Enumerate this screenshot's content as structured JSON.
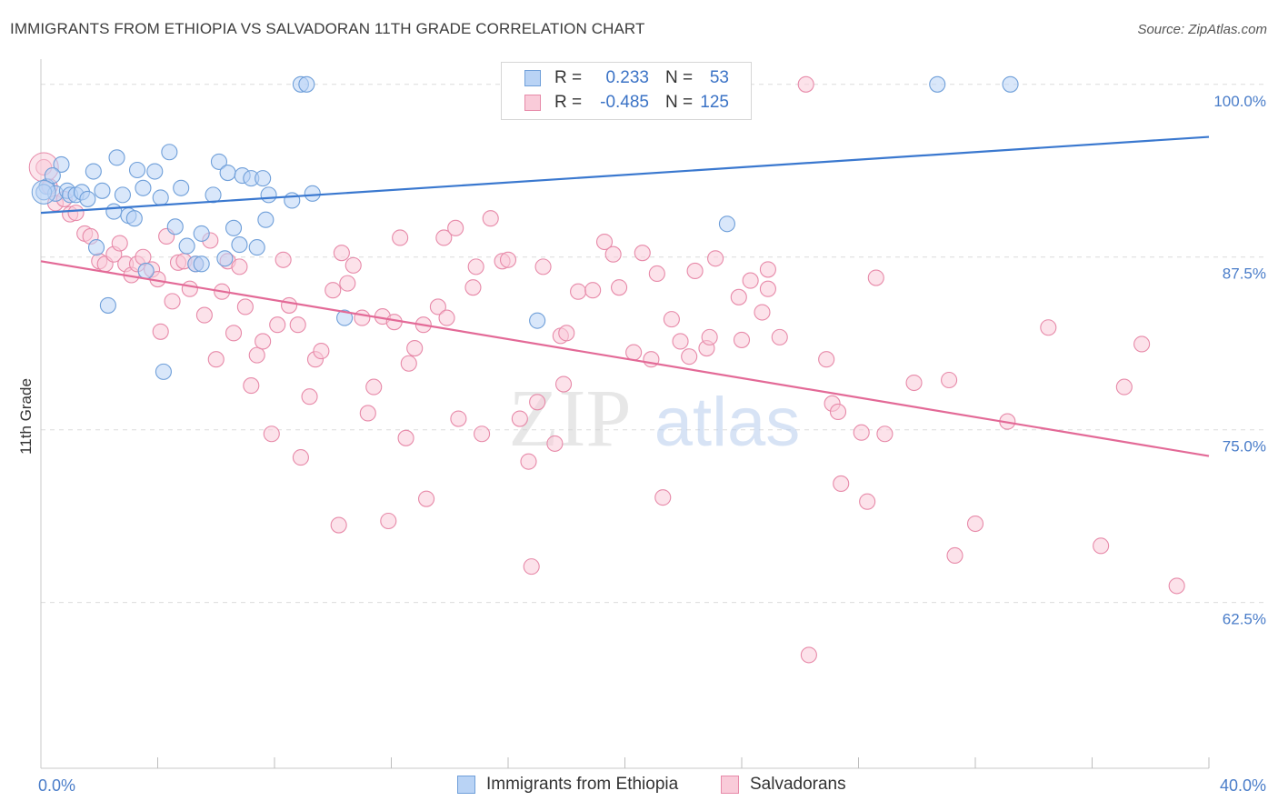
{
  "title": "IMMIGRANTS FROM ETHIOPIA VS SALVADORAN 11TH GRADE CORRELATION CHART",
  "source": "Source: ZipAtlas.com",
  "watermark": {
    "part1": "ZIP",
    "part2": "atlas"
  },
  "legend_stats": [
    {
      "r_label": "R =",
      "r_value": "0.233",
      "n_label": "N =",
      "n_value": "53",
      "color": "#a9c8f2",
      "border": "#6f9fd9"
    },
    {
      "r_label": "R =",
      "r_value": "-0.485",
      "n_label": "N =",
      "n_value": "125",
      "color": "#f7bfd1",
      "border": "#e78aa9"
    }
  ],
  "legend_series": [
    {
      "label": "Immigrants from Ethiopia",
      "color": "#b9d3f5",
      "border": "#6f9fd9"
    },
    {
      "label": "Salvadorans",
      "color": "#f9cbd9",
      "border": "#e78aa9"
    }
  ],
  "chart_data": {
    "type": "scatter",
    "title": "IMMIGRANTS FROM ETHIOPIA VS SALVADORAN 11TH GRADE CORRELATION CHART",
    "xlabel": "",
    "ylabel": "11th Grade",
    "xlim": [
      0,
      40
    ],
    "ylim": [
      50.5,
      101.5
    ],
    "x_tick_labels": [
      "0.0%",
      "40.0%"
    ],
    "y_ticks": [
      62.5,
      75.0,
      87.5,
      100.0
    ],
    "y_tick_labels": [
      "62.5%",
      "75.0%",
      "87.5%",
      "100.0%"
    ],
    "colors": {
      "blue": "#3a78cf",
      "pink": "#e36a97",
      "axis_label": "#4a7dc9"
    },
    "series": [
      {
        "name": "Immigrants from Ethiopia",
        "trend": {
          "x": [
            0,
            40
          ],
          "y": [
            90.7,
            96.2
          ]
        },
        "points": [
          [
            0.2,
            92.6
          ],
          [
            0.5,
            92.1
          ],
          [
            0.7,
            94.2
          ],
          [
            0.9,
            92.3
          ],
          [
            1.0,
            92.0
          ],
          [
            1.2,
            92.0
          ],
          [
            1.4,
            92.2
          ],
          [
            1.6,
            91.7
          ],
          [
            1.8,
            93.7
          ],
          [
            1.9,
            88.2
          ],
          [
            2.1,
            92.3
          ],
          [
            2.3,
            84.0
          ],
          [
            2.5,
            90.8
          ],
          [
            2.6,
            94.7
          ],
          [
            2.8,
            92.0
          ],
          [
            3.0,
            90.5
          ],
          [
            3.2,
            90.3
          ],
          [
            3.3,
            93.8
          ],
          [
            3.5,
            92.5
          ],
          [
            3.6,
            86.5
          ],
          [
            3.9,
            93.7
          ],
          [
            4.1,
            91.8
          ],
          [
            4.2,
            79.2
          ],
          [
            4.4,
            95.1
          ],
          [
            4.6,
            89.7
          ],
          [
            4.8,
            92.5
          ],
          [
            5.0,
            88.3
          ],
          [
            5.3,
            87.0
          ],
          [
            5.5,
            87.0
          ],
          [
            5.5,
            89.2
          ],
          [
            5.9,
            92.0
          ],
          [
            6.1,
            94.4
          ],
          [
            6.3,
            87.4
          ],
          [
            6.4,
            93.6
          ],
          [
            6.6,
            89.6
          ],
          [
            6.8,
            88.4
          ],
          [
            6.9,
            93.4
          ],
          [
            7.2,
            93.2
          ],
          [
            7.4,
            88.2
          ],
          [
            7.6,
            93.2
          ],
          [
            7.7,
            90.2
          ],
          [
            7.8,
            92.0
          ],
          [
            8.6,
            91.6
          ],
          [
            8.9,
            100.0
          ],
          [
            9.1,
            100.0
          ],
          [
            9.3,
            92.1
          ],
          [
            10.4,
            83.1
          ],
          [
            17.0,
            82.9
          ],
          [
            23.5,
            89.9
          ],
          [
            30.7,
            100.0
          ],
          [
            33.2,
            100.0
          ],
          [
            0.1,
            92.2
          ],
          [
            0.4,
            93.4
          ]
        ]
      },
      {
        "name": "Salvadorans",
        "trend": {
          "x": [
            0,
            40
          ],
          "y": [
            87.2,
            73.1
          ]
        },
        "points": [
          [
            0.1,
            94.0
          ],
          [
            0.3,
            92.6
          ],
          [
            0.5,
            91.4
          ],
          [
            0.8,
            91.7
          ],
          [
            1.0,
            90.6
          ],
          [
            1.2,
            90.7
          ],
          [
            1.5,
            89.2
          ],
          [
            1.7,
            89.0
          ],
          [
            2.0,
            87.2
          ],
          [
            2.2,
            87.0
          ],
          [
            2.5,
            87.7
          ],
          [
            2.7,
            88.5
          ],
          [
            2.9,
            87.0
          ],
          [
            3.1,
            86.2
          ],
          [
            3.3,
            87.0
          ],
          [
            3.5,
            87.5
          ],
          [
            3.8,
            86.6
          ],
          [
            4.0,
            85.9
          ],
          [
            4.1,
            82.1
          ],
          [
            4.3,
            89.0
          ],
          [
            4.5,
            84.3
          ],
          [
            4.7,
            87.1
          ],
          [
            4.9,
            87.2
          ],
          [
            5.1,
            85.2
          ],
          [
            5.3,
            87.0
          ],
          [
            5.6,
            83.3
          ],
          [
            5.8,
            88.7
          ],
          [
            6.0,
            80.1
          ],
          [
            6.2,
            85.0
          ],
          [
            6.4,
            87.2
          ],
          [
            6.6,
            82.0
          ],
          [
            6.8,
            86.8
          ],
          [
            7.0,
            83.9
          ],
          [
            7.2,
            78.2
          ],
          [
            7.4,
            80.4
          ],
          [
            7.6,
            81.4
          ],
          [
            7.9,
            74.7
          ],
          [
            8.1,
            82.6
          ],
          [
            8.3,
            87.3
          ],
          [
            8.5,
            84.0
          ],
          [
            8.8,
            82.6
          ],
          [
            8.9,
            73.0
          ],
          [
            9.2,
            77.4
          ],
          [
            9.4,
            80.1
          ],
          [
            9.6,
            80.7
          ],
          [
            10.0,
            85.1
          ],
          [
            10.2,
            68.1
          ],
          [
            10.3,
            87.8
          ],
          [
            10.5,
            85.6
          ],
          [
            10.7,
            86.9
          ],
          [
            11.0,
            83.1
          ],
          [
            11.2,
            76.2
          ],
          [
            11.4,
            78.1
          ],
          [
            11.7,
            83.2
          ],
          [
            11.9,
            68.4
          ],
          [
            12.1,
            82.8
          ],
          [
            12.3,
            88.9
          ],
          [
            12.5,
            74.4
          ],
          [
            12.6,
            79.8
          ],
          [
            12.8,
            80.9
          ],
          [
            13.1,
            82.6
          ],
          [
            13.2,
            70.0
          ],
          [
            13.6,
            83.9
          ],
          [
            13.8,
            88.9
          ],
          [
            13.9,
            83.1
          ],
          [
            14.2,
            89.6
          ],
          [
            14.3,
            75.8
          ],
          [
            14.8,
            85.3
          ],
          [
            14.9,
            86.8
          ],
          [
            15.1,
            74.7
          ],
          [
            15.4,
            90.3
          ],
          [
            15.8,
            87.2
          ],
          [
            16.0,
            87.3
          ],
          [
            16.4,
            75.8
          ],
          [
            16.7,
            72.7
          ],
          [
            16.8,
            65.1
          ],
          [
            17.0,
            77.0
          ],
          [
            17.2,
            86.8
          ],
          [
            17.6,
            74.0
          ],
          [
            17.8,
            81.8
          ],
          [
            17.9,
            78.3
          ],
          [
            18.0,
            82.0
          ],
          [
            18.4,
            85.0
          ],
          [
            18.9,
            85.1
          ],
          [
            19.3,
            88.6
          ],
          [
            19.6,
            87.7
          ],
          [
            19.8,
            85.3
          ],
          [
            20.3,
            80.6
          ],
          [
            20.6,
            87.8
          ],
          [
            20.9,
            80.1
          ],
          [
            21.1,
            86.3
          ],
          [
            21.3,
            70.1
          ],
          [
            21.6,
            83.0
          ],
          [
            21.9,
            81.4
          ],
          [
            22.2,
            80.3
          ],
          [
            22.4,
            86.5
          ],
          [
            22.8,
            80.9
          ],
          [
            22.9,
            81.7
          ],
          [
            23.1,
            87.4
          ],
          [
            23.9,
            84.6
          ],
          [
            24.0,
            81.5
          ],
          [
            24.3,
            85.8
          ],
          [
            24.7,
            83.5
          ],
          [
            24.9,
            85.2
          ],
          [
            24.9,
            86.6
          ],
          [
            25.3,
            81.7
          ],
          [
            26.2,
            100.0
          ],
          [
            26.3,
            58.7
          ],
          [
            26.9,
            80.1
          ],
          [
            27.1,
            76.9
          ],
          [
            27.3,
            76.3
          ],
          [
            27.4,
            71.1
          ],
          [
            28.1,
            74.8
          ],
          [
            28.3,
            69.8
          ],
          [
            28.6,
            86.0
          ],
          [
            28.9,
            74.7
          ],
          [
            29.9,
            78.4
          ],
          [
            31.1,
            78.6
          ],
          [
            31.3,
            65.9
          ],
          [
            32.0,
            68.2
          ],
          [
            33.1,
            75.6
          ],
          [
            34.5,
            82.4
          ],
          [
            36.3,
            66.6
          ],
          [
            37.1,
            78.1
          ],
          [
            37.7,
            81.2
          ],
          [
            38.9,
            63.7
          ]
        ]
      }
    ]
  }
}
